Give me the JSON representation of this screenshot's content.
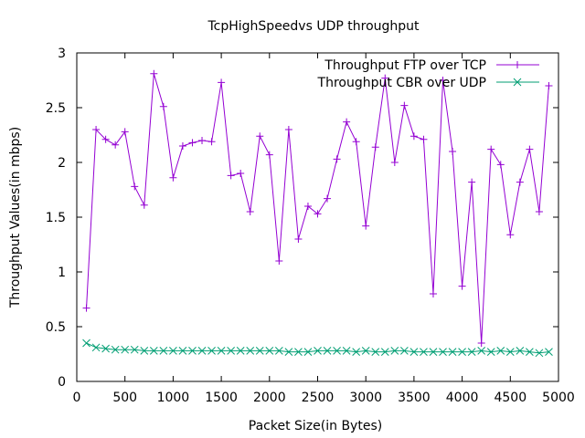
{
  "chart_data": {
    "type": "line",
    "title": "TcpHighSpeedvs UDP throughput",
    "xlabel": "Packet Size(in Bytes)",
    "ylabel": "Throughput Values(in mbps)",
    "xlim": [
      0,
      5000
    ],
    "ylim": [
      0,
      3
    ],
    "xticks": [
      "0",
      "500",
      "1000",
      "1500",
      "2000",
      "2500",
      "3000",
      "3500",
      "4000",
      "4500",
      "5000"
    ],
    "yticks": [
      "0",
      "0.5",
      "1",
      "1.5",
      "2",
      "2.5",
      "3"
    ],
    "grid": false,
    "legend_position": "top-right",
    "x": [
      100,
      200,
      300,
      400,
      500,
      600,
      700,
      800,
      900,
      1000,
      1100,
      1200,
      1300,
      1400,
      1500,
      1600,
      1700,
      1800,
      1900,
      2000,
      2100,
      2200,
      2300,
      2400,
      2500,
      2600,
      2700,
      2800,
      2900,
      3000,
      3100,
      3200,
      3300,
      3400,
      3500,
      3600,
      3700,
      3800,
      3900,
      4000,
      4100,
      4200,
      4300,
      4400,
      4500,
      4600,
      4700,
      4800,
      4900
    ],
    "series": [
      {
        "name": "Throughput FTP over TCP",
        "color": "#9400d3",
        "marker": "plus",
        "values": [
          0.67,
          2.3,
          2.21,
          2.16,
          2.28,
          1.78,
          1.61,
          2.81,
          2.51,
          1.86,
          2.15,
          2.18,
          2.2,
          2.19,
          2.73,
          1.88,
          1.9,
          1.55,
          2.24,
          2.07,
          1.1,
          2.3,
          1.3,
          1.6,
          1.53,
          1.67,
          2.03,
          2.37,
          2.19,
          1.42,
          2.14,
          2.77,
          2.0,
          2.52,
          2.24,
          2.21,
          0.8,
          2.75,
          2.1,
          0.87,
          1.82,
          0.35,
          2.12,
          1.98,
          1.34,
          1.82,
          2.12,
          1.55,
          2.7
        ]
      },
      {
        "name": "Throughput CBR over UDP",
        "color": "#009e73",
        "marker": "cross",
        "values": [
          0.35,
          0.31,
          0.3,
          0.29,
          0.29,
          0.29,
          0.28,
          0.28,
          0.28,
          0.28,
          0.28,
          0.28,
          0.28,
          0.28,
          0.28,
          0.28,
          0.28,
          0.28,
          0.28,
          0.28,
          0.28,
          0.27,
          0.27,
          0.27,
          0.28,
          0.28,
          0.28,
          0.28,
          0.27,
          0.28,
          0.27,
          0.27,
          0.28,
          0.28,
          0.27,
          0.27,
          0.27,
          0.27,
          0.27,
          0.27,
          0.27,
          0.28,
          0.27,
          0.28,
          0.27,
          0.28,
          0.27,
          0.26,
          0.27
        ]
      }
    ]
  }
}
